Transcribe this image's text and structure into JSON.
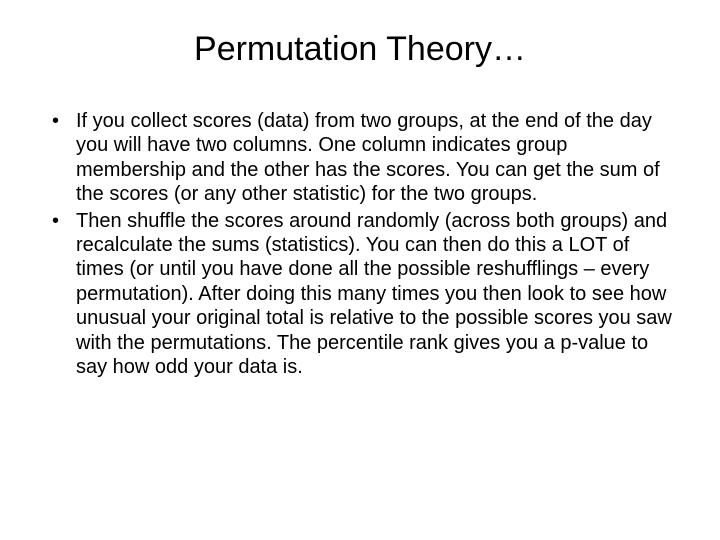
{
  "slide": {
    "title": "Permutation Theory…",
    "bullets": [
      "If you collect scores (data) from two groups, at the end of the day you will have two columns. One column indicates group membership and the other has the scores.  You can get the sum of the scores (or any other statistic) for the two groups.",
      "Then shuffle the scores around randomly (across both groups) and recalculate the sums (statistics).  You can then do this a LOT of times (or until you have done all the possible reshufflings – every permutation).  After doing this many times you then look to see how unusual your original total is relative to the possible scores you saw with the permutations.  The percentile rank gives you a p-value to say how odd your data is."
    ]
  },
  "style": {
    "background_color": "#ffffff",
    "text_color": "#000000",
    "title_fontsize_pt": 34,
    "body_fontsize_pt": 20,
    "font_family": "Arial"
  }
}
